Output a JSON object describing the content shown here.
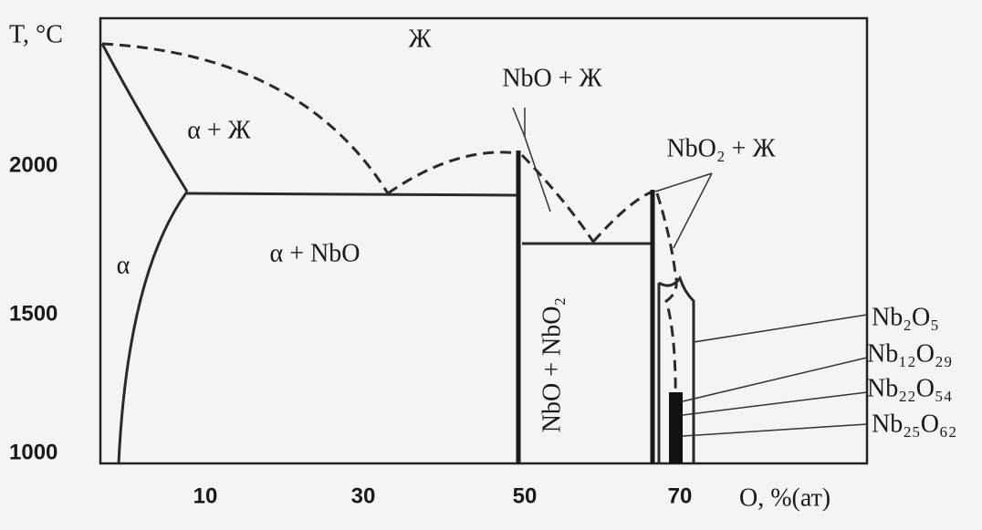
{
  "axes": {
    "y_label": "T, °C",
    "x_label": "O, %(ат)",
    "y_ticks": [
      "2000",
      "1500",
      "1000"
    ],
    "x_ticks": [
      "10",
      "30",
      "50",
      "70"
    ]
  },
  "regions": {
    "liquid": "Ж",
    "nbo_liquid": "NbO + Ж",
    "alpha_liquid": "α + Ж",
    "nbo2_liquid": "NbO₂ + Ж",
    "alpha_nbo": "α + NbO",
    "alpha": "α",
    "nbo_nbo2": "NbO + NbO₂"
  },
  "phases": [
    "Nb₂O₅",
    "Nb₁₂O₂₉",
    "Nb₂₂O₅₄",
    "Nb₂₅O₆₂"
  ]
}
